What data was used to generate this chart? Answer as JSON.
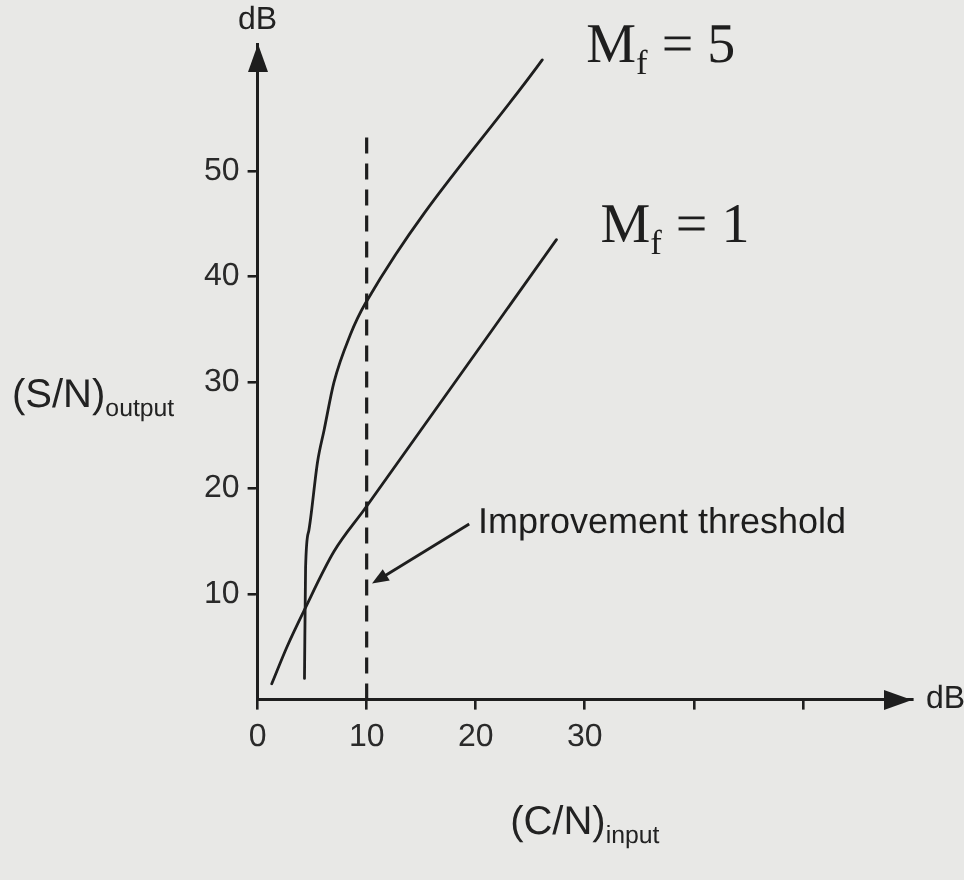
{
  "chart_data": {
    "type": "line",
    "xlabel": "(C/N)$_{input}$",
    "ylabel": "(S/N)$_{output}$",
    "annotations": [
      "dB",
      "dB"
    ],
    "xlim": [
      0,
      60
    ],
    "xticks": [
      0,
      10,
      20,
      30,
      {
        "value": 40,
        "label": null
      },
      {
        "value": 50,
        "label": null
      }
    ],
    "ylim": [
      0,
      62
    ],
    "yticks": [
      10,
      20,
      30,
      40,
      50
    ],
    "series": [
      {
        "name": "M$_{f}$ = 5",
        "color": "#1e1e1e",
        "x": [
          4.3,
          4.4,
          4.7,
          5.5,
          6.1,
          7,
          8.5,
          9.9,
          26.1
        ],
        "values": [
          2,
          12.5,
          16,
          22.5,
          25.5,
          30,
          34.5,
          37.5,
          60.5
        ]
      },
      {
        "name": "M$_{f}$ = 1",
        "color": "#1e1e1e",
        "x": [
          1.3,
          2.7,
          4.3,
          7,
          9.8,
          27.4
        ],
        "values": [
          1.5,
          5,
          8.5,
          14,
          18,
          43.5
        ]
      }
    ],
    "ref_lines": [
      {
        "axis": "x",
        "value": 10,
        "label": "Improvement threshold",
        "line_style": "dashed",
        "color": "#1e1e1e"
      }
    ],
    "grid": false,
    "legend": false,
    "marker": "none"
  }
}
